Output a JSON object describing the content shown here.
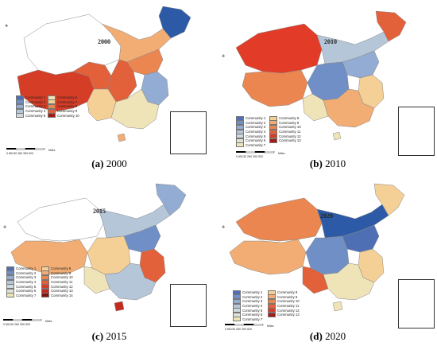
{
  "panels": [
    {
      "year": "2000",
      "caption_letter": "(a)",
      "caption_year": "2000",
      "legend_left": [
        "Community 1",
        "Community 2",
        "Community 3",
        "Community 4",
        "Community 5"
      ],
      "legend_right": [
        "Community 6",
        "Community 7",
        "Community 8",
        "Community 9",
        "Community 10"
      ]
    },
    {
      "year": "2010",
      "caption_letter": "(b)",
      "caption_year": "2010",
      "legend_left": [
        "Community 1",
        "Community 2",
        "Community 3",
        "Community 4",
        "Community 5",
        "Community 6",
        "Community 7"
      ],
      "legend_right": [
        "Community 8",
        "Community 9",
        "Community 10",
        "Community 11",
        "Community 12",
        "Community 13"
      ]
    },
    {
      "year": "2015",
      "caption_letter": "(c)",
      "caption_year": "2015",
      "legend_left": [
        "Community 1",
        "Community 2",
        "Community 3",
        "Community 4",
        "Community 5",
        "Community 6",
        "Community 7"
      ],
      "legend_right": [
        "Community 8",
        "Community 9",
        "Community 10",
        "Community 11",
        "Community 12",
        "Community 13",
        "Community 14"
      ]
    },
    {
      "year": "2020",
      "caption_letter": "(d)",
      "caption_year": "2020",
      "legend_left": [
        "Community 1",
        "Community 2",
        "Community 3",
        "Community 4",
        "Community 5",
        "Community 6",
        "Community 7"
      ],
      "legend_right": [
        "Community 8",
        "Community 9",
        "Community 10",
        "Community 11",
        "Community 12",
        "Community 13"
      ]
    }
  ],
  "scale_bar": {
    "ticks": "0  65130     260     390     520",
    "unit": "Miles"
  },
  "compass_symbol": "compass-rose-icon",
  "colors": {
    "ramp": [
      "#4f6fb5",
      "#6f8fc6",
      "#93acd3",
      "#b5c6d9",
      "#cfd8dc",
      "#efe3b8",
      "#f4cf96",
      "#f1ad74",
      "#eb8650",
      "#e2603a",
      "#d63d27",
      "#c42a1e",
      "#a31c16",
      "#7d1410"
    ]
  }
}
